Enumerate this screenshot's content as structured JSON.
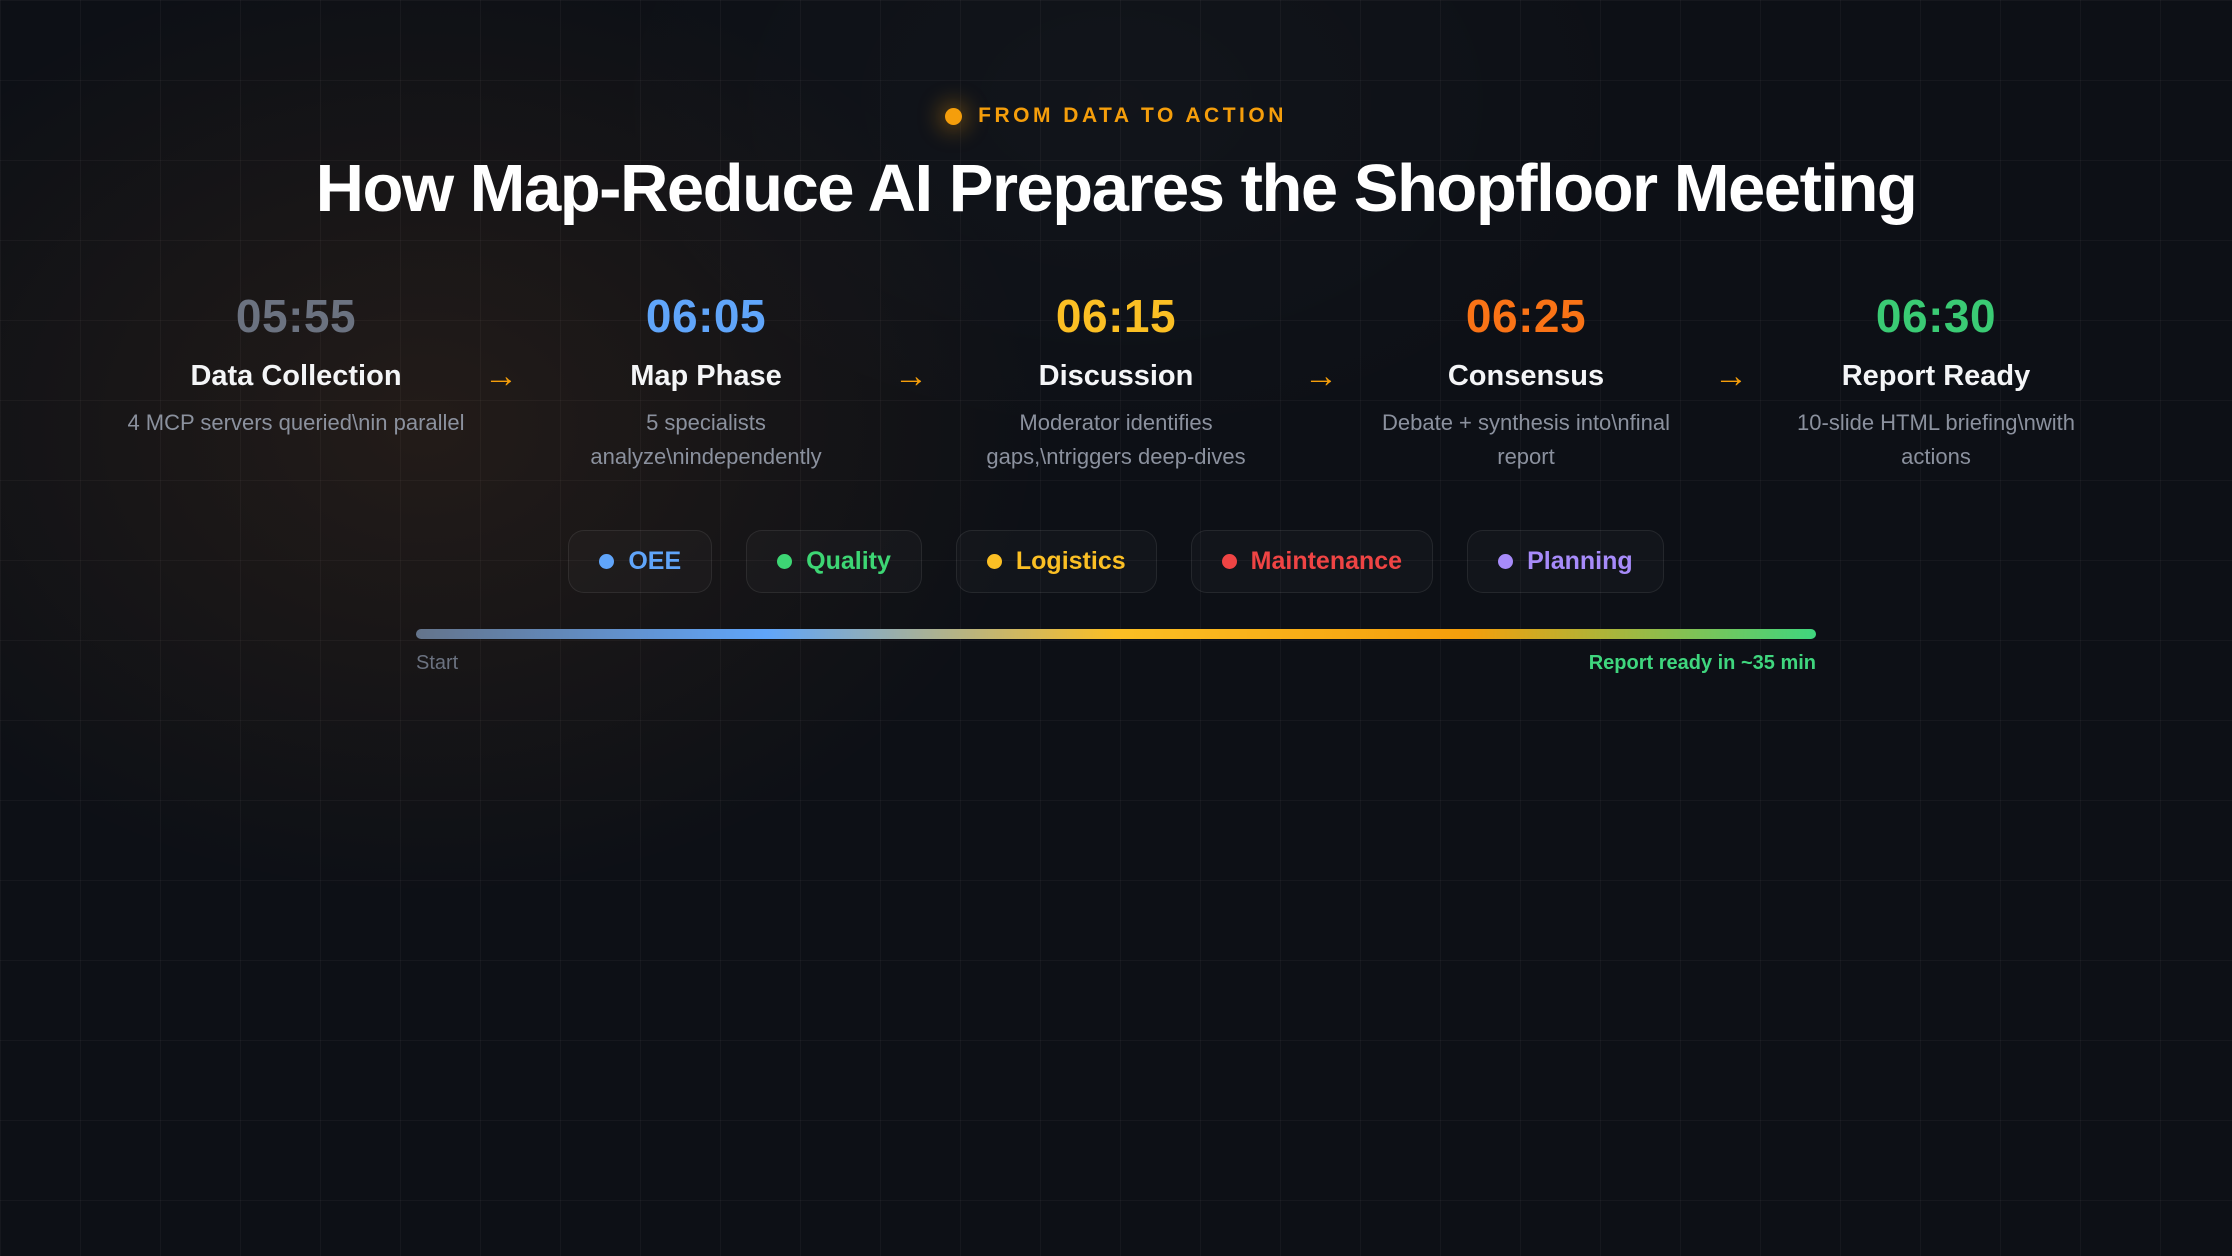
{
  "header": {
    "eyebrow": "FROM DATA TO ACTION",
    "eyebrow_color": "#f59e0b",
    "title": "How Map-Reduce AI Prepares the Shopfloor Meeting"
  },
  "timeline": {
    "arrow": "→",
    "arrow_color": "#f59e0b",
    "steps": [
      {
        "time": "05:55",
        "time_color": "#6b7280",
        "title": "Data Collection",
        "desc": "4 MCP servers queried\\nin parallel"
      },
      {
        "time": "06:05",
        "time_color": "#60a5fa",
        "title": "Map Phase",
        "desc": "5 specialists analyze\\nindependently"
      },
      {
        "time": "06:15",
        "time_color": "#fbbf24",
        "title": "Discussion",
        "desc": "Moderator identifies gaps,\\ntriggers deep-dives"
      },
      {
        "time": "06:25",
        "time_color": "#f97316",
        "title": "Consensus",
        "desc": "Debate + synthesis into\\nfinal report"
      },
      {
        "time": "06:30",
        "time_color": "#3acb74",
        "title": "Report Ready",
        "desc": "10-slide HTML briefing\\nwith actions"
      }
    ]
  },
  "badges": [
    {
      "label": "OEE",
      "color": "#60a5fa"
    },
    {
      "label": "Quality",
      "color": "#3dd674"
    },
    {
      "label": "Logistics",
      "color": "#fbbf24"
    },
    {
      "label": "Maintenance",
      "color": "#ef4444"
    },
    {
      "label": "Planning",
      "color": "#a78bfa"
    }
  ],
  "progress": {
    "gradient": [
      "#64748b",
      "#60a5fa",
      "#fbbf24",
      "#f59e0b",
      "#3fd67e"
    ],
    "start_label": "Start",
    "end_label": "Report ready in ~35 min"
  }
}
